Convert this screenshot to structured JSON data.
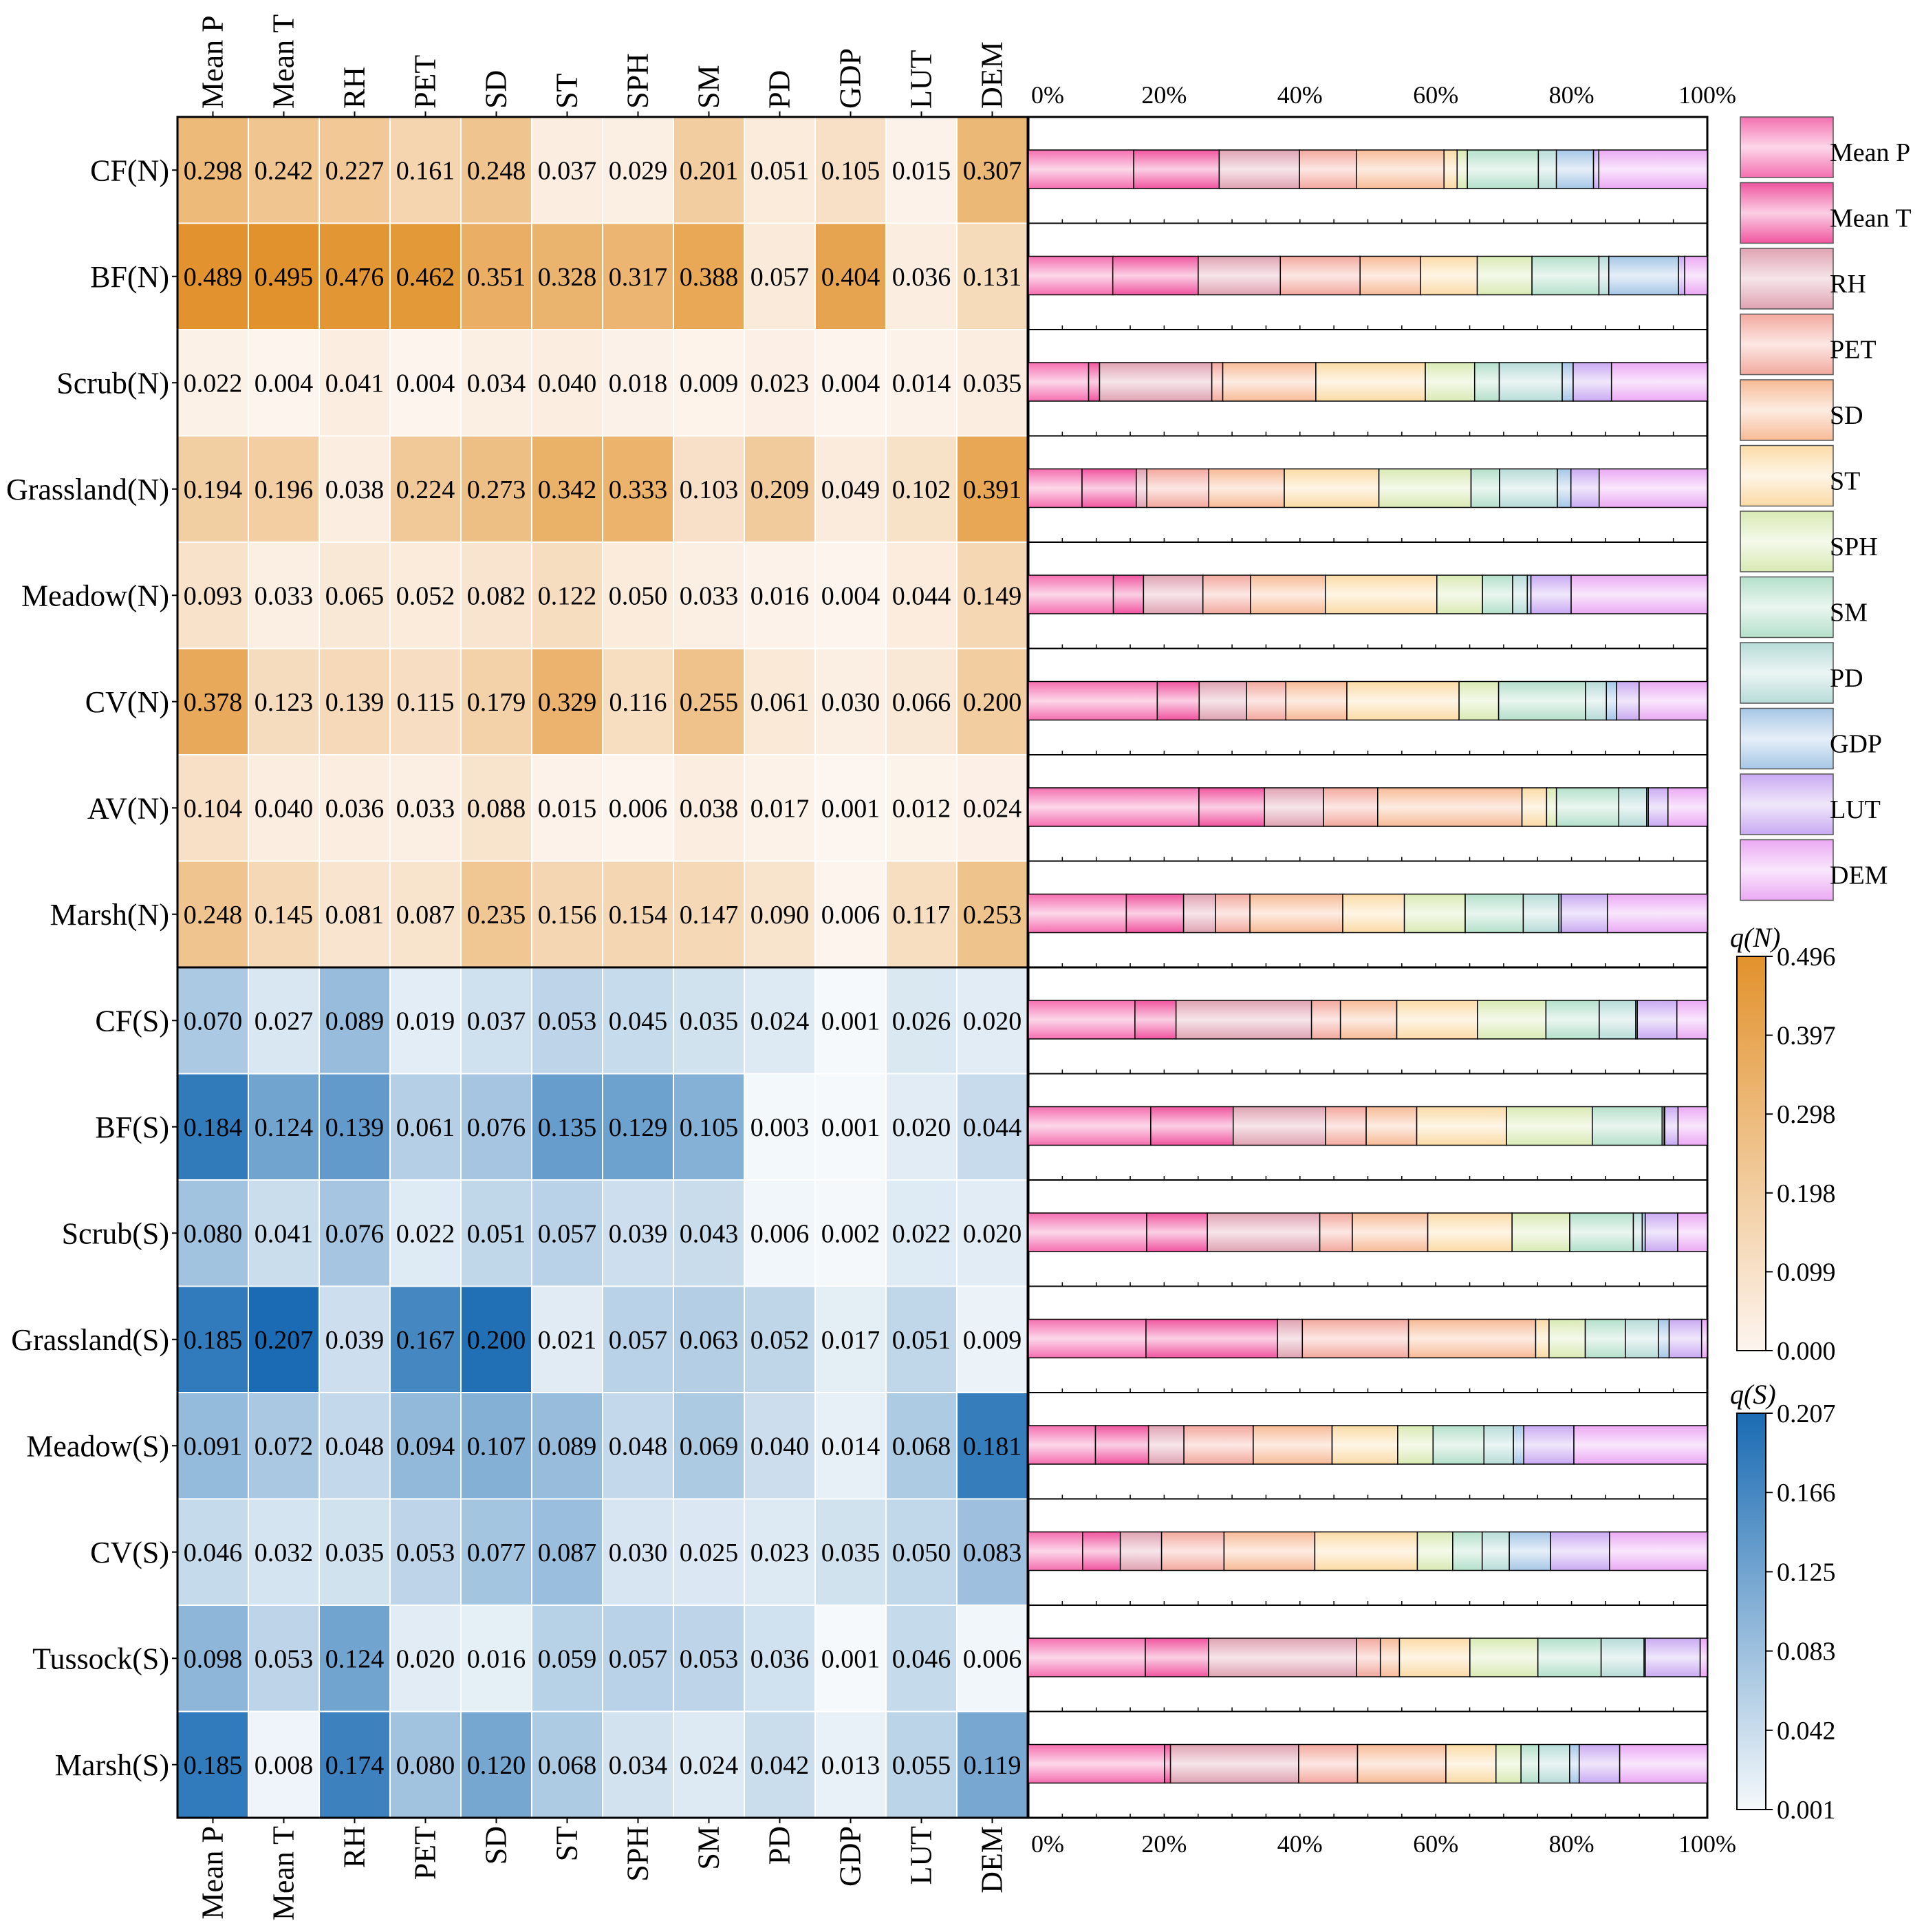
{
  "chart_data": {
    "type": "heatmap",
    "variables": [
      "Mean P",
      "Mean T",
      "RH",
      "PET",
      "SD",
      "ST",
      "SPH",
      "SM",
      "PD",
      "GDP",
      "LUT",
      "DEM"
    ],
    "north": {
      "rows": [
        "CF(N)",
        "BF(N)",
        "Scrub(N)",
        "Grassland(N)",
        "Meadow(N)",
        "CV(N)",
        "AV(N)",
        "Marsh(N)"
      ],
      "values": [
        [
          0.298,
          0.242,
          0.227,
          0.161,
          0.248,
          0.037,
          0.029,
          0.201,
          0.051,
          0.105,
          0.015,
          0.307
        ],
        [
          0.489,
          0.495,
          0.476,
          0.462,
          0.351,
          0.328,
          0.317,
          0.388,
          0.057,
          0.404,
          0.036,
          0.131
        ],
        [
          0.022,
          0.004,
          0.041,
          0.004,
          0.034,
          0.04,
          0.018,
          0.009,
          0.023,
          0.004,
          0.014,
          0.035
        ],
        [
          0.194,
          0.196,
          0.038,
          0.224,
          0.273,
          0.342,
          0.333,
          0.103,
          0.209,
          0.049,
          0.102,
          0.391
        ],
        [
          0.093,
          0.033,
          0.065,
          0.052,
          0.082,
          0.122,
          0.05,
          0.033,
          0.016,
          0.004,
          0.044,
          0.149
        ],
        [
          0.378,
          0.123,
          0.139,
          0.115,
          0.179,
          0.329,
          0.116,
          0.255,
          0.061,
          0.03,
          0.066,
          0.2
        ],
        [
          0.104,
          0.04,
          0.036,
          0.033,
          0.088,
          0.015,
          0.006,
          0.038,
          0.017,
          0.001,
          0.012,
          0.024
        ],
        [
          0.248,
          0.145,
          0.081,
          0.087,
          0.235,
          0.156,
          0.154,
          0.147,
          0.09,
          0.006,
          0.117,
          0.253
        ]
      ],
      "value_labels": [
        [
          "0.298",
          "0.242",
          "0.227",
          "0.161",
          "0.248",
          "0.037",
          "0.029",
          "0.201",
          "0.051",
          "0.105",
          "0.015",
          "0.307"
        ],
        [
          "0.489",
          "0.495",
          "0.476",
          "0.462",
          "0.351",
          "0.328",
          "0.317",
          "0.388",
          "0.057",
          "0.404",
          "0.036",
          "0.131"
        ],
        [
          "0.022",
          "0.004",
          "0.041",
          "0.004",
          "0.034",
          "0.040",
          "0.018",
          "0.009",
          "0.023",
          "0.004",
          "0.014",
          "0.035"
        ],
        [
          "0.194",
          "0.196",
          "0.038",
          "0.224",
          "0.273",
          "0.342",
          "0.333",
          "0.103",
          "0.209",
          "0.049",
          "0.102",
          "0.391"
        ],
        [
          "0.093",
          "0.033",
          "0.065",
          "0.052",
          "0.082",
          "0.122",
          "0.050",
          "0.033",
          "0.016",
          "0.004",
          "0.044",
          "0.149"
        ],
        [
          "0.378",
          "0.123",
          "0.139",
          "0.115",
          "0.179",
          "0.329",
          "0.116",
          "0.255",
          "0.061",
          "0.030",
          "0.066",
          "0.200"
        ],
        [
          "0.104",
          "0.040",
          "0.036",
          "0.033",
          "0.088",
          "0.015",
          "0.006",
          "0.038",
          "0.017",
          "0.001",
          "0.012",
          "0.024"
        ],
        [
          "0.248",
          "0.145",
          "0.081",
          "0.087",
          "0.235",
          "0.156",
          "0.154",
          "0.147",
          "0.090",
          "0.006",
          "0.117",
          "0.253"
        ]
      ],
      "colorbar": {
        "title": "q(N)",
        "range": [
          0.0,
          0.496
        ],
        "ticks": [
          "0.496",
          "0.397",
          "0.298",
          "0.198",
          "0.099",
          "0.000"
        ],
        "color_low": "#fdf5ef",
        "color_high": "#e2922c"
      }
    },
    "south": {
      "rows": [
        "CF(S)",
        "BF(S)",
        "Scrub(S)",
        "Grassland(S)",
        "Meadow(S)",
        "CV(S)",
        "Tussock(S)",
        "Marsh(S)"
      ],
      "values": [
        [
          0.07,
          0.027,
          0.089,
          0.019,
          0.037,
          0.053,
          0.045,
          0.035,
          0.024,
          0.001,
          0.026,
          0.02
        ],
        [
          0.184,
          0.124,
          0.139,
          0.061,
          0.076,
          0.135,
          0.129,
          0.105,
          0.003,
          0.001,
          0.02,
          0.044
        ],
        [
          0.08,
          0.041,
          0.076,
          0.022,
          0.051,
          0.057,
          0.039,
          0.043,
          0.006,
          0.002,
          0.022,
          0.02
        ],
        [
          0.185,
          0.207,
          0.039,
          0.167,
          0.2,
          0.021,
          0.057,
          0.063,
          0.052,
          0.017,
          0.051,
          0.009
        ],
        [
          0.091,
          0.072,
          0.048,
          0.094,
          0.107,
          0.089,
          0.048,
          0.069,
          0.04,
          0.014,
          0.068,
          0.181
        ],
        [
          0.046,
          0.032,
          0.035,
          0.053,
          0.077,
          0.087,
          0.03,
          0.025,
          0.023,
          0.035,
          0.05,
          0.083
        ],
        [
          0.098,
          0.053,
          0.124,
          0.02,
          0.016,
          0.059,
          0.057,
          0.053,
          0.036,
          0.001,
          0.046,
          0.006
        ],
        [
          0.185,
          0.008,
          0.174,
          0.08,
          0.12,
          0.068,
          0.034,
          0.024,
          0.042,
          0.013,
          0.055,
          0.119
        ]
      ],
      "value_labels": [
        [
          "0.070",
          "0.027",
          "0.089",
          "0.019",
          "0.037",
          "0.053",
          "0.045",
          "0.035",
          "0.024",
          "0.001",
          "0.026",
          "0.020"
        ],
        [
          "0.184",
          "0.124",
          "0.139",
          "0.061",
          "0.076",
          "0.135",
          "0.129",
          "0.105",
          "0.003",
          "0.001",
          "0.020",
          "0.044"
        ],
        [
          "0.080",
          "0.041",
          "0.076",
          "0.022",
          "0.051",
          "0.057",
          "0.039",
          "0.043",
          "0.006",
          "0.002",
          "0.022",
          "0.020"
        ],
        [
          "0.185",
          "0.207",
          "0.039",
          "0.167",
          "0.200",
          "0.021",
          "0.057",
          "0.063",
          "0.052",
          "0.017",
          "0.051",
          "0.009"
        ],
        [
          "0.091",
          "0.072",
          "0.048",
          "0.094",
          "0.107",
          "0.089",
          "0.048",
          "0.069",
          "0.040",
          "0.014",
          "0.068",
          "0.181"
        ],
        [
          "0.046",
          "0.032",
          "0.035",
          "0.053",
          "0.077",
          "0.087",
          "0.030",
          "0.025",
          "0.023",
          "0.035",
          "0.050",
          "0.083"
        ],
        [
          "0.098",
          "0.053",
          "0.124",
          "0.020",
          "0.016",
          "0.059",
          "0.057",
          "0.053",
          "0.036",
          "0.001",
          "0.046",
          "0.006"
        ],
        [
          "0.185",
          "0.008",
          "0.174",
          "0.080",
          "0.120",
          "0.068",
          "0.034",
          "0.024",
          "0.042",
          "0.013",
          "0.055",
          "0.119"
        ]
      ],
      "colorbar": {
        "title": "q(S)",
        "range": [
          0.001,
          0.207
        ],
        "ticks": [
          "0.207",
          "0.166",
          "0.125",
          "0.083",
          "0.042",
          "0.001"
        ],
        "color_low": "#f5f9fb",
        "color_high": "#1a6bb3"
      }
    },
    "stacked_bars": {
      "type": "stacked-bar-100",
      "xlim": [
        0,
        100
      ],
      "x_ticks": [
        "0%",
        "20%",
        "40%",
        "60%",
        "80%",
        "100%"
      ],
      "note": "Each row's bar shows each variable's share of that row's summed q values"
    },
    "legend": {
      "entries": [
        "Mean P",
        "Mean T",
        "RH",
        "PET",
        "SD",
        "ST",
        "SPH",
        "SM",
        "PD",
        "GDP",
        "LUT",
        "DEM"
      ],
      "colors": [
        "#f56fb0",
        "#f0559f",
        "#e0a3b3",
        "#f3a99e",
        "#f7bb97",
        "#fbdba6",
        "#d9eab4",
        "#b4e0cb",
        "#b7dcd8",
        "#a6c7e6",
        "#c9aaf2",
        "#eba9f4"
      ],
      "placement": "right"
    }
  }
}
